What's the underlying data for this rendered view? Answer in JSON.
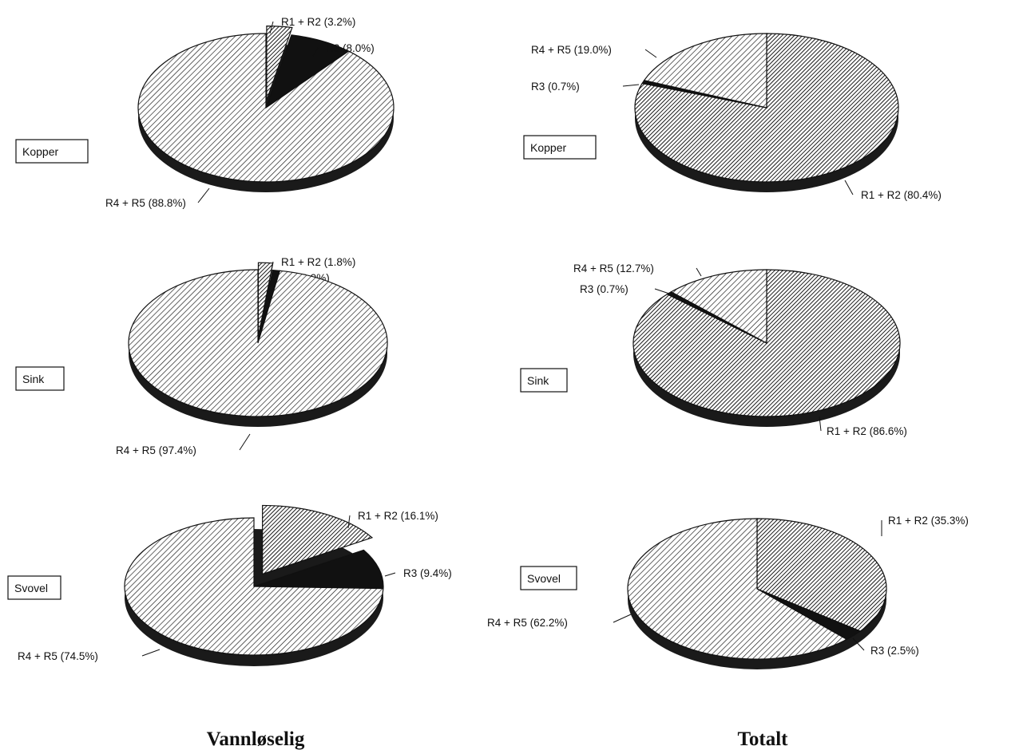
{
  "colors": {
    "ink": "#111111",
    "paper": "#ffffff"
  },
  "chart_data": [
    {
      "type": "pie",
      "column": "Vannløselig",
      "label": "Kopper",
      "slices": [
        {
          "name": "R1 + R2",
          "value": 3.2,
          "text": "R1 + R2 (3.2%)",
          "fill": "hatch-dark",
          "exploded": true
        },
        {
          "name": "R3",
          "value": 8.0,
          "text": "R3 (8.0%)",
          "fill": "solid"
        },
        {
          "name": "R4 + R5",
          "value": 88.8,
          "text": "R4 + R5 (88.8%)",
          "fill": "hatch-light"
        }
      ]
    },
    {
      "type": "pie",
      "column": "Totalt",
      "label": "Kopper",
      "slices": [
        {
          "name": "R1 + R2",
          "value": 80.4,
          "text": "R1 + R2 (80.4%)",
          "fill": "hatch-dark"
        },
        {
          "name": "R3",
          "value": 0.7,
          "text": "R3 (0.7%)",
          "fill": "solid"
        },
        {
          "name": "R4 + R5",
          "value": 19.0,
          "text": "R4 + R5 (19.0%)",
          "fill": "hatch-light"
        }
      ]
    },
    {
      "type": "pie",
      "column": "Vannløselig",
      "label": "Sink",
      "slices": [
        {
          "name": "R1 + R2",
          "value": 1.8,
          "text": "R1 + R2 (1.8%)",
          "fill": "hatch-dark",
          "exploded": true
        },
        {
          "name": "R3",
          "value": 0.9,
          "text": "R3 (0.9%)",
          "fill": "solid"
        },
        {
          "name": "R4 + R5",
          "value": 97.4,
          "text": "R4 + R5 (97.4%)",
          "fill": "hatch-light"
        }
      ]
    },
    {
      "type": "pie",
      "column": "Totalt",
      "label": "Sink",
      "slices": [
        {
          "name": "R1 + R2",
          "value": 86.6,
          "text": "R1 + R2 (86.6%)",
          "fill": "hatch-dark"
        },
        {
          "name": "R3",
          "value": 0.7,
          "text": "R3 (0.7%)",
          "fill": "solid"
        },
        {
          "name": "R4 + R5",
          "value": 12.7,
          "text": "R4 + R5 (12.7%)",
          "fill": "hatch-light"
        }
      ]
    },
    {
      "type": "pie",
      "column": "Vannløselig",
      "label": "Svovel",
      "slices": [
        {
          "name": "R1 + R2",
          "value": 16.1,
          "text": "R1 + R2 (16.1%)",
          "fill": "hatch-dark",
          "exploded": true
        },
        {
          "name": "R3",
          "value": 9.4,
          "text": "R3 (9.4%)",
          "fill": "solid"
        },
        {
          "name": "R4 + R5",
          "value": 74.5,
          "text": "R4 + R5 (74.5%)",
          "fill": "hatch-light"
        }
      ]
    },
    {
      "type": "pie",
      "column": "Totalt",
      "label": "Svovel",
      "slices": [
        {
          "name": "R1 + R2",
          "value": 35.3,
          "text": "R1 + R2 (35.3%)",
          "fill": "hatch-dark"
        },
        {
          "name": "R3",
          "value": 2.5,
          "text": "R3 (2.5%)",
          "fill": "solid"
        },
        {
          "name": "R4 + R5",
          "value": 62.2,
          "text": "R4 + R5 (62.2%)",
          "fill": "hatch-light"
        }
      ]
    }
  ],
  "column_titles": {
    "left": "Vannløselig",
    "right": "Totalt"
  }
}
